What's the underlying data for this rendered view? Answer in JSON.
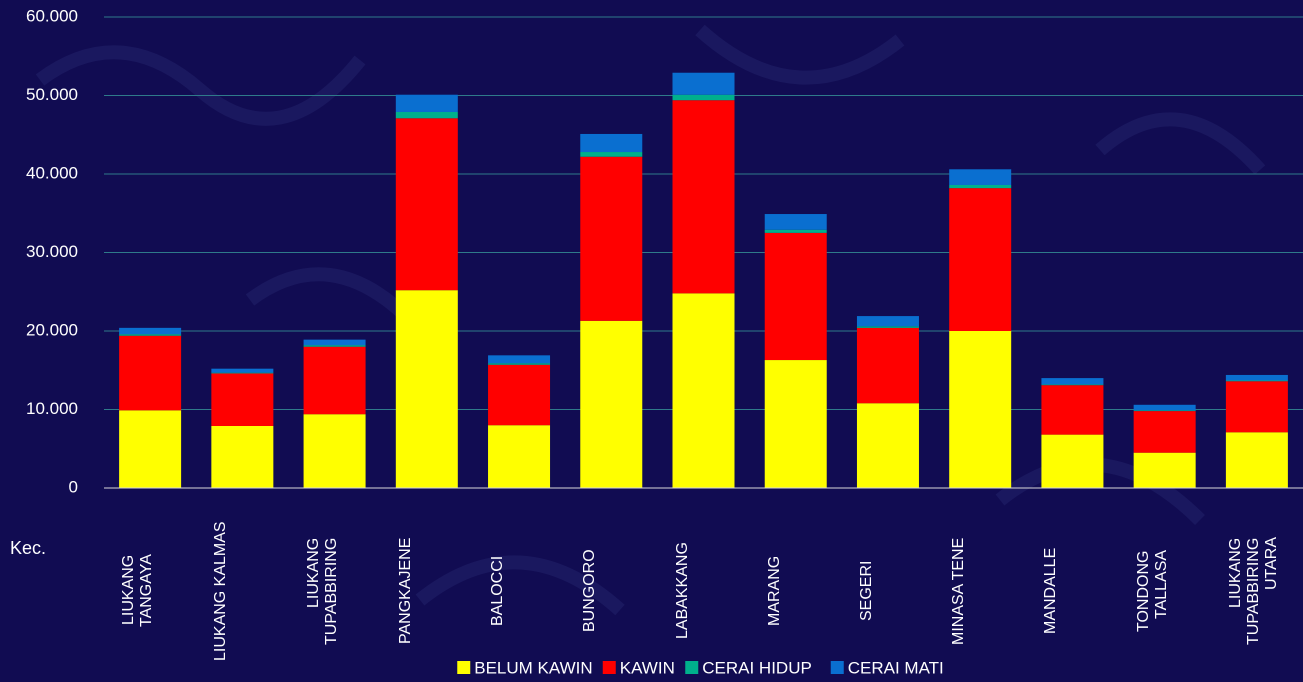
{
  "chart_data": {
    "type": "stacked_bar",
    "x_label": "Kec.",
    "categories": [
      "LIUKANG\nTANGAYA",
      "LIUKANG KALMAS",
      "LIUKANG\nTUPABBIRING",
      "PANGKAJENE",
      "BALOCCI",
      "BUNGORO",
      "LABAKKANG",
      "MARANG",
      "SEGERI",
      "MINASA TENE",
      "MANDALLE",
      "TONDONG\nTALLASA",
      "LIUKANG\nTUPABBIRING\nUTARA"
    ],
    "series": [
      {
        "name": "BELUM KAWIN",
        "color": "#ffff00",
        "values": [
          9900,
          7900,
          9400,
          25200,
          8000,
          21300,
          24800,
          16300,
          10800,
          20000,
          6800,
          4500,
          7100
        ]
      },
      {
        "name": "KAWIN",
        "color": "#ff0000",
        "values": [
          9500,
          6700,
          8600,
          21900,
          7700,
          20900,
          24600,
          16200,
          9600,
          18200,
          6300,
          5300,
          6500
        ]
      },
      {
        "name": "CERAI HIDUP",
        "color": "#00b08c",
        "values": [
          200,
          100,
          200,
          800,
          200,
          600,
          700,
          400,
          200,
          400,
          100,
          100,
          100
        ]
      },
      {
        "name": "CERAI MATI",
        "color": "#0a6fd0",
        "values": [
          800,
          500,
          700,
          2200,
          1000,
          2300,
          2800,
          2000,
          1300,
          2000,
          800,
          700,
          700
        ]
      }
    ],
    "ylim": [
      0,
      60000
    ],
    "yticks": [
      0,
      {
        "value": 10000,
        "label": "10.000"
      },
      {
        "value": 20000,
        "label": "20.000"
      },
      {
        "value": 30000,
        "label": "30.000"
      },
      {
        "value": 40000,
        "label": "40.000"
      },
      {
        "value": 50000,
        "label": "50.000"
      },
      {
        "value": 60000,
        "label": "60.000"
      }
    ],
    "grid": true,
    "legend": "bottom"
  }
}
